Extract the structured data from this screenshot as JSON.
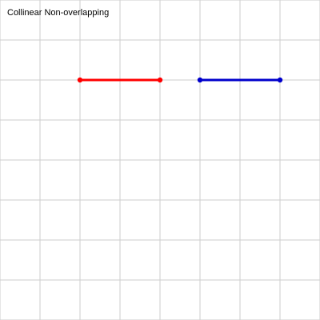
{
  "title": "Collinear Non-overlapping",
  "grid": {
    "spacing": 50,
    "color": "#cccccc"
  },
  "segments": [
    {
      "id": "segment-red",
      "color": "#ff0000",
      "start": [
        2,
        2
      ],
      "end": [
        4,
        2
      ]
    },
    {
      "id": "segment-blue",
      "color": "#0000cc",
      "start": [
        5,
        2
      ],
      "end": [
        7,
        2
      ]
    }
  ]
}
